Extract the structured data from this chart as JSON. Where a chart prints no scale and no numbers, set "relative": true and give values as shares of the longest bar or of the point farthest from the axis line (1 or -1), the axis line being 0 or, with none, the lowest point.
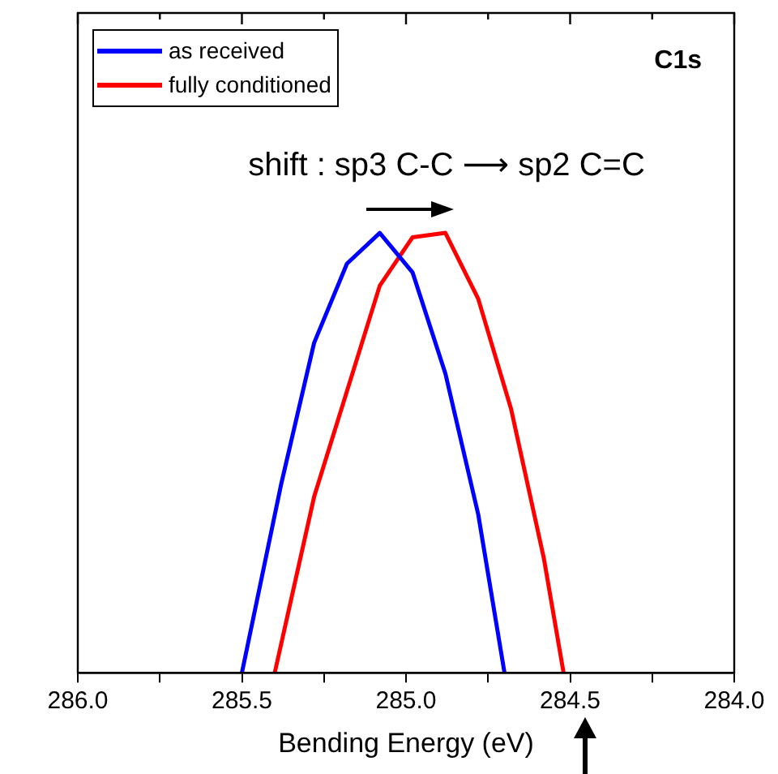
{
  "chart_data": {
    "type": "line",
    "xlabel": "Bending Energy (eV)",
    "relative": true,
    "xlim": [
      286,
      284
    ],
    "xticks": [
      {
        "value": 286,
        "label": "286.0"
      },
      {
        "value": 285.75,
        "label": null
      },
      {
        "value": 285.5,
        "label": "285.5"
      },
      {
        "value": 285.25,
        "label": null
      },
      {
        "value": 285,
        "label": "285.0"
      },
      {
        "value": 284.75,
        "label": null
      },
      {
        "value": 284.5,
        "label": "284.5"
      },
      {
        "value": 284.25,
        "label": null
      },
      {
        "value": 284,
        "label": "284.0"
      }
    ],
    "series": [
      {
        "name": "as received",
        "color": "#0000ff",
        "x": [
          285.5,
          285.38,
          285.28,
          285.18,
          285.08,
          284.98,
          284.88,
          284.78,
          284.7
        ],
        "values": [
          0,
          0.43,
          0.75,
          0.93,
          1,
          0.91,
          0.68,
          0.36,
          0
        ]
      },
      {
        "name": "fully conditioned",
        "color": "#ff0000",
        "x": [
          285.4,
          285.28,
          285.08,
          284.98,
          284.88,
          284.78,
          284.68,
          284.58,
          284.52
        ],
        "values": [
          0,
          0.4,
          0.88,
          0.99,
          1,
          0.85,
          0.6,
          0.26,
          0
        ]
      }
    ],
    "annotations": [
      "C1s",
      "shift : sp3 C-C ⟶ sp2 C=C"
    ],
    "legend": "top left",
    "tick_labels": "x",
    "grid": false,
    "marker": "none",
    "line_style": "solid"
  }
}
